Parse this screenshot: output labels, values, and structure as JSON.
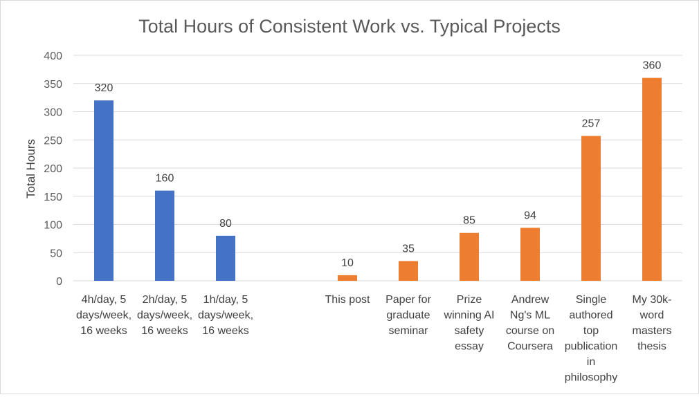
{
  "chart_data": {
    "type": "bar",
    "title": "Total Hours of Consistent Work vs. Typical Projects",
    "ylabel": "Total Hours",
    "xlabel": "",
    "ylim": [
      0,
      400
    ],
    "yticks": [
      0,
      50,
      100,
      150,
      200,
      250,
      300,
      350,
      400
    ],
    "grid": true,
    "legend": "none",
    "categories": [
      [
        "4h/day, 5",
        "days/week,",
        "16 weeks"
      ],
      [
        "2h/day, 5",
        "days/week,",
        "16 weeks"
      ],
      [
        "1h/day, 5",
        "days/week,",
        "16 weeks"
      ],
      [],
      [
        "This post"
      ],
      [
        "Paper for",
        "graduate",
        "seminar"
      ],
      [
        "Prize",
        "winning AI",
        "safety",
        "essay"
      ],
      [
        "Andrew",
        "Ng's ML",
        "course on",
        "Coursera"
      ],
      [
        "Single",
        "authored",
        "top",
        "publication",
        "in",
        "philosophy"
      ],
      [
        "My 30k-",
        "word",
        "masters",
        "thesis"
      ]
    ],
    "values": [
      320,
      160,
      80,
      null,
      10,
      35,
      85,
      94,
      257,
      360
    ],
    "colors": [
      "#4472c4",
      "#4472c4",
      "#4472c4",
      null,
      "#ed7d31",
      "#ed7d31",
      "#ed7d31",
      "#ed7d31",
      "#ed7d31",
      "#ed7d31"
    ],
    "gridColor": "#d9d9d9"
  }
}
